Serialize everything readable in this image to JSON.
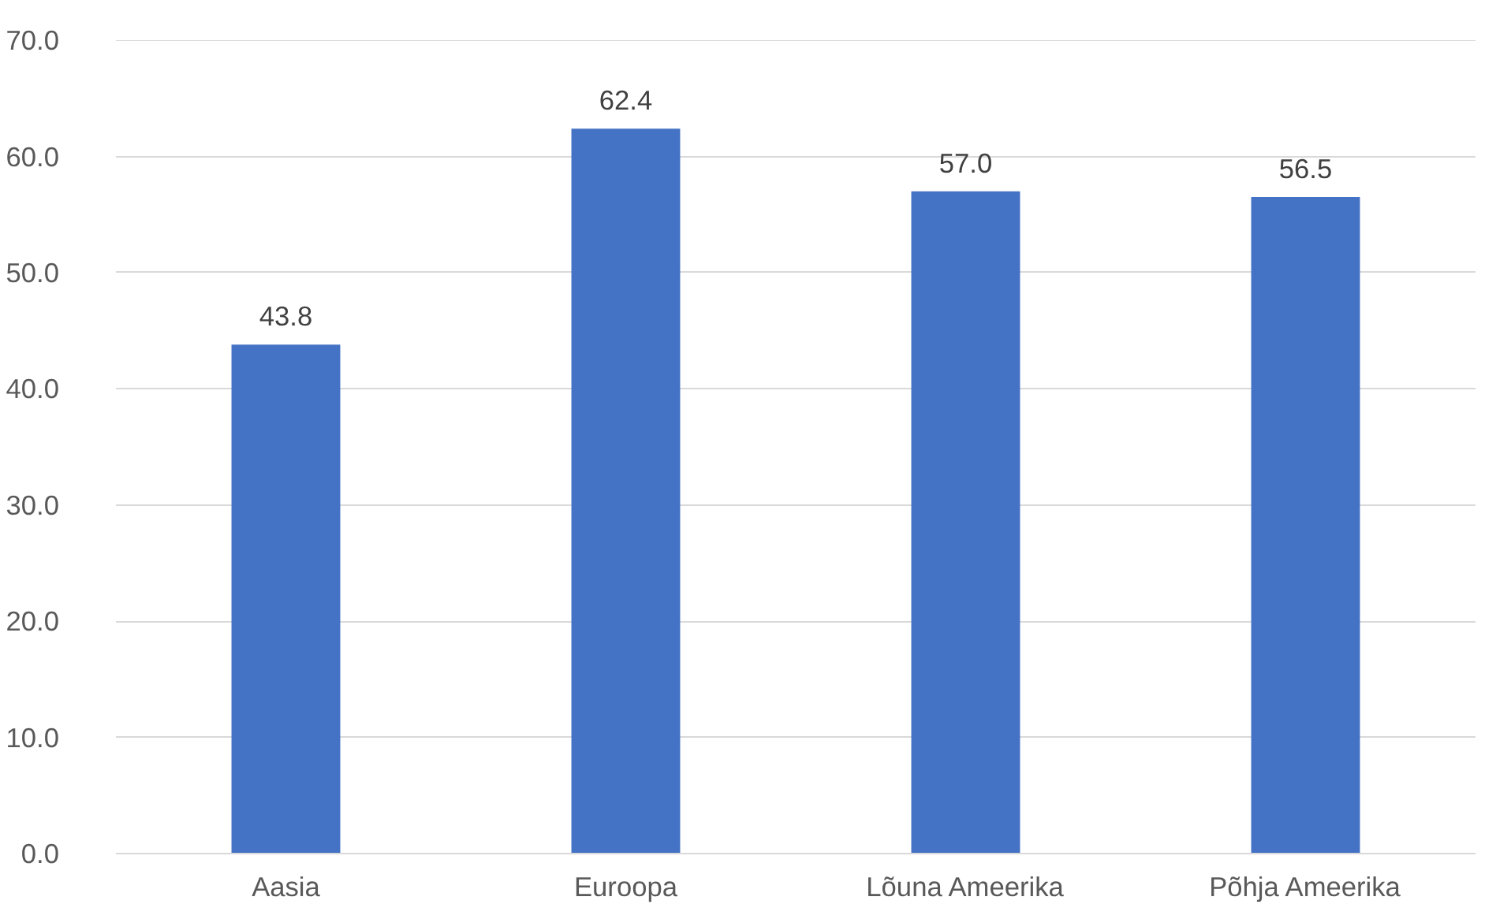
{
  "chart_data": {
    "type": "bar",
    "categories": [
      "Aasia",
      "Euroopa",
      "Lõuna Ameerika",
      "Põhja Ameerika"
    ],
    "values": [
      43.8,
      62.4,
      57.0,
      56.5
    ],
    "value_labels": [
      "43.8",
      "62.4",
      "57.0",
      "56.5"
    ],
    "color": "#4472c4",
    "ylim": [
      0,
      70
    ],
    "yticks": [
      {
        "value": 0,
        "label": "0.0"
      },
      {
        "value": 10,
        "label": "10.0"
      },
      {
        "value": 20,
        "label": "20.0"
      },
      {
        "value": 30,
        "label": "30.0"
      },
      {
        "value": 40,
        "label": "40.0"
      },
      {
        "value": 50,
        "label": "50.0"
      },
      {
        "value": 60,
        "label": "60.0"
      },
      {
        "value": 70,
        "label": "70.0"
      }
    ],
    "grid": "y"
  }
}
